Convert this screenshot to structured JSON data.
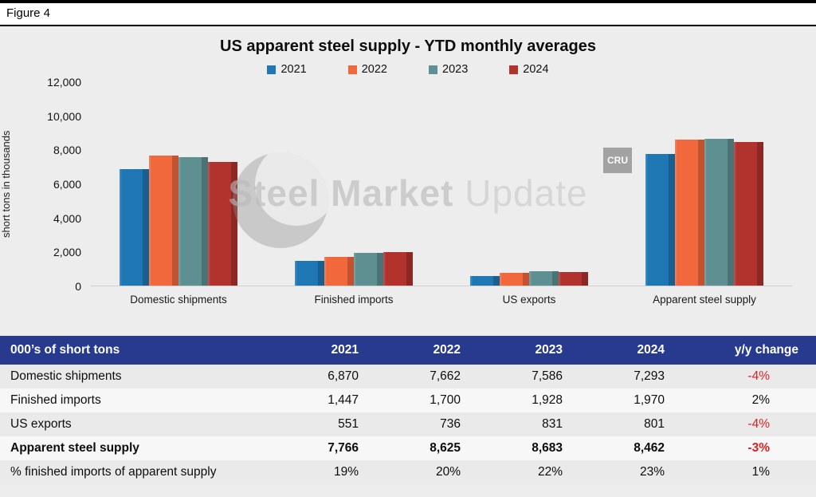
{
  "figure": {
    "label": "Figure 4"
  },
  "chart_data": {
    "type": "bar",
    "title": "US apparent steel supply - YTD monthly averages",
    "xlabel": "",
    "ylabel": "short tons in thousands",
    "categories": [
      "Domestic shipments",
      "Finished imports",
      "US exports",
      "Apparent steel supply"
    ],
    "series": [
      {
        "name": "2021",
        "color": "#1F77B4",
        "values": [
          6870,
          1447,
          551,
          7766
        ]
      },
      {
        "name": "2022",
        "color": "#F1683C",
        "values": [
          7662,
          1700,
          736,
          8625
        ]
      },
      {
        "name": "2023",
        "color": "#5E9092",
        "values": [
          7586,
          1928,
          831,
          8683
        ]
      },
      {
        "name": "2024",
        "color": "#B2322E",
        "values": [
          7293,
          1970,
          801,
          8462
        ]
      }
    ],
    "ylim": [
      0,
      12000
    ],
    "ytick_interval": 2000,
    "yticks": [
      "12,000",
      "10,000",
      "8,000",
      "6,000",
      "4,000",
      "2,000",
      "0"
    ],
    "grid": false,
    "legend_position": "top"
  },
  "watermark": {
    "text_primary": "Steel Market",
    "text_secondary": "Update",
    "badge": "CRU"
  },
  "table": {
    "header": {
      "col0": "000’s of short tons",
      "col1": "2021",
      "col2": "2022",
      "col3": "2023",
      "col4": "2024",
      "col5": "y/y change"
    },
    "rows": [
      {
        "label": "Domestic shipments",
        "v1": "6,870",
        "v2": "7,662",
        "v3": "7,586",
        "v4": "7,293",
        "yoy": "-4%"
      },
      {
        "label": "Finished imports",
        "v1": "1,447",
        "v2": "1,700",
        "v3": "1,928",
        "v4": "1,970",
        "yoy": "2%"
      },
      {
        "label": "US exports",
        "v1": "551",
        "v2": "736",
        "v3": "831",
        "v4": "801",
        "yoy": "-4%"
      },
      {
        "label": "Apparent steel supply",
        "v1": "7,766",
        "v2": "8,625",
        "v3": "8,683",
        "v4": "8,462",
        "yoy": "-3%"
      },
      {
        "label": "% finished imports of apparent supply",
        "v1": "19%",
        "v2": "20%",
        "v3": "22%",
        "v4": "23%",
        "yoy": "1%"
      }
    ]
  },
  "colors": {
    "accent_header": "#283A8E",
    "negative": "#E02020",
    "chart_background": "#EDEDED"
  }
}
